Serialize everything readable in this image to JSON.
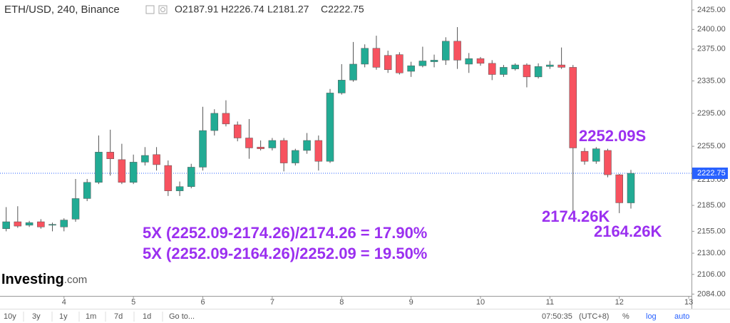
{
  "chart_data": {
    "type": "candlestick",
    "title": "ETH/USD, 240, Binance",
    "ohlc_labels": [
      "O2187.91",
      "H2226.74",
      "L2181.27",
      "C2222.75"
    ],
    "x": [
      3.167,
      3.333,
      3.5,
      3.667,
      3.833,
      4,
      4.167,
      4.333,
      4.5,
      4.667,
      4.833,
      5,
      5.167,
      5.333,
      5.5,
      5.667,
      5.833,
      6,
      6.167,
      6.333,
      6.5,
      6.667,
      6.833,
      7,
      7.167,
      7.333,
      7.5,
      7.667,
      7.833,
      8,
      8.167,
      8.333,
      8.5,
      8.667,
      8.833,
      9,
      9.167,
      9.333,
      9.5,
      9.667,
      9.833,
      10,
      10.167,
      10.333,
      10.5,
      10.667,
      10.833,
      11,
      11.167,
      11.333,
      11.5,
      11.667,
      11.833,
      12,
      12.167
    ],
    "open": [
      2158,
      2166,
      2162,
      2166,
      2162,
      2160,
      2169,
      2193,
      2212,
      2248,
      2239,
      2212,
      2236,
      2245,
      2232,
      2202,
      2207,
      2230,
      2274,
      2295,
      2281,
      2265,
      2254,
      2253,
      2262,
      2235,
      2250,
      2262,
      2237,
      2320,
      2336,
      2356,
      2376,
      2367,
      2368,
      2347,
      2354,
      2359,
      2361,
      2385,
      2356,
      2363,
      2357,
      2343,
      2350,
      2355,
      2340,
      2353,
      2355,
      2352,
      2249,
      2237,
      2250,
      2221,
      2187.91
    ],
    "high": [
      2183,
      2184,
      2167,
      2169,
      2165,
      2170,
      2216,
      2216,
      2268,
      2275,
      2258,
      2245,
      2254,
      2254,
      2238,
      2213,
      2234,
      2303,
      2300,
      2311,
      2285,
      2288,
      2262,
      2265,
      2265,
      2252,
      2271,
      2268,
      2325,
      2356,
      2384,
      2381,
      2392,
      2373,
      2371,
      2359,
      2378,
      2368,
      2390,
      2403,
      2370,
      2365,
      2361,
      2355,
      2357,
      2357,
      2357,
      2360,
      2377,
      2355,
      2253,
      2254,
      2252,
      2222,
      2226.74
    ],
    "low": [
      2155,
      2159,
      2160,
      2158,
      2155,
      2155,
      2166,
      2190,
      2210,
      2220,
      2210,
      2210,
      2232,
      2226,
      2196,
      2196,
      2205,
      2226,
      2268,
      2279,
      2261,
      2240,
      2250,
      2250,
      2225,
      2232,
      2246,
      2226,
      2235,
      2318,
      2334,
      2352,
      2349,
      2345,
      2343,
      2340,
      2352,
      2352,
      2355,
      2350,
      2345,
      2354,
      2336,
      2340,
      2348,
      2327,
      2338,
      2350,
      2350,
      2176,
      2233,
      2234,
      2218,
      2176,
      2181.27
    ],
    "close": [
      2166,
      2161,
      2165,
      2160,
      2163,
      2168,
      2193,
      2212,
      2248,
      2240,
      2212,
      2236,
      2244,
      2233,
      2202,
      2207,
      2230,
      2274,
      2295,
      2282,
      2265,
      2253,
      2252,
      2262,
      2235,
      2250,
      2262,
      2237,
      2320,
      2336,
      2356,
      2376,
      2352,
      2349,
      2345,
      2354,
      2360,
      2361,
      2385,
      2361,
      2363,
      2357,
      2343,
      2352,
      2355,
      2340,
      2353,
      2355,
      2352,
      2253,
      2237,
      2252,
      2221,
      2188,
      2222.75
    ],
    "up_color": "#22ab94",
    "down_color": "#f7525f",
    "xlim": [
      3.078,
      13.04
    ],
    "xticks": [
      4,
      5,
      6,
      7,
      8,
      9,
      10,
      11,
      12,
      13
    ],
    "ylim": [
      2082,
      2438
    ],
    "log_scale": true,
    "yticks": [
      {
        "value": 2425,
        "label": "2425.00"
      },
      {
        "value": 2400,
        "label": "2400.00"
      },
      {
        "value": 2375,
        "label": "2375.00"
      },
      {
        "value": 2335,
        "label": "2335.00"
      },
      {
        "value": 2295,
        "label": "2295.00"
      },
      {
        "value": 2255,
        "label": "2255.00"
      },
      {
        "value": 2215,
        "label": "2215.00"
      },
      {
        "value": 2185,
        "label": "2185.00"
      },
      {
        "value": 2155,
        "label": "2155.00"
      },
      {
        "value": 2130,
        "label": "2130.00"
      },
      {
        "value": 2106,
        "label": "2106.00"
      },
      {
        "value": 2084,
        "label": "2084.00"
      }
    ],
    "last_price": 2222.75,
    "annotations": [
      "2252.09S",
      "2174.26K",
      "2164.26K",
      "5X (2252.09-2174.26)/2174.26 = 17.90%",
      "5X (2252.09-2164.26)/2252.09 = 19.50%"
    ],
    "annotation_color": "#9b30f0",
    "logo": [
      "Investing",
      ".com"
    ],
    "toolbar_left": [
      "10y",
      "3y",
      "1y",
      "1m",
      "7d",
      "1d",
      "Go to..."
    ],
    "toolbar_right": [
      "07:50:35",
      "(UTC+8)",
      "%",
      "log",
      "auto"
    ]
  }
}
